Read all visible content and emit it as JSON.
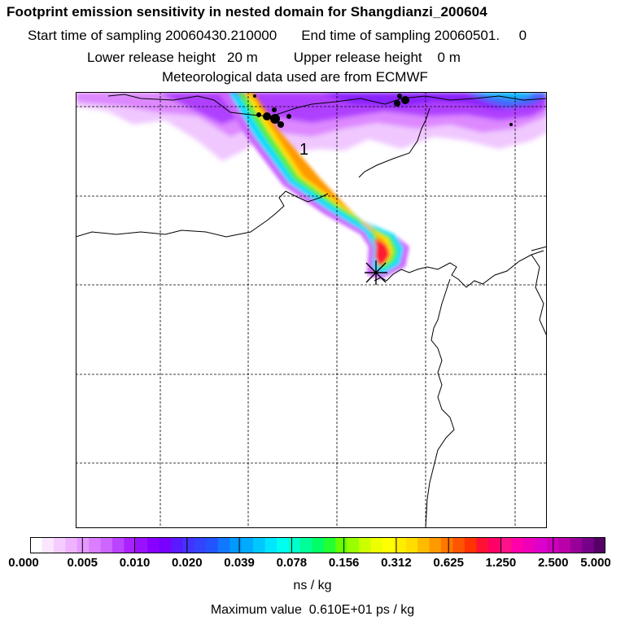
{
  "header": {
    "title": "Footprint emission sensitivity in nested domain for Shangdianzi_200604",
    "start_label": "Start time of sampling 20060430.210000",
    "end_label": "End time of sampling 20060501.     0",
    "lower_height": "Lower release height   20 m",
    "upper_height": "Upper release height    0 m",
    "met_data": "Meteorological data used are from ECMWF"
  },
  "map": {
    "plume_label": "1",
    "receptor_marker": "receptor-star"
  },
  "colorbar": {
    "ticks": [
      "0.000",
      "0.005",
      "0.010",
      "0.020",
      "0.039",
      "0.078",
      "0.156",
      "0.312",
      "0.625",
      "1.250",
      "2.500",
      "5.000"
    ],
    "colors": [
      "#ffffff",
      "#fbe6ff",
      "#f5ccff",
      "#eeb2ff",
      "#e599ff",
      "#d97fff",
      "#cc66ff",
      "#bb44ff",
      "#aa22ff",
      "#9911ff",
      "#8800ff",
      "#7700ff",
      "#5a1aff",
      "#4433ff",
      "#3344ff",
      "#2255ff",
      "#1177ff",
      "#0099ff",
      "#00aaff",
      "#00c8ff",
      "#00e6ff",
      "#00ffee",
      "#00ffcc",
      "#00ff99",
      "#00ff66",
      "#22ff33",
      "#66ff00",
      "#99ff00",
      "#ccff00",
      "#eeff00",
      "#ffff00",
      "#ffee00",
      "#ffdd00",
      "#ffbb00",
      "#ff9900",
      "#ff7700",
      "#ff5500",
      "#ff3300",
      "#ff1133",
      "#ff0066",
      "#ff1188",
      "#ff00aa",
      "#ee00bb",
      "#dd00cc",
      "#cc00bb",
      "#bb00aa",
      "#990099",
      "#770088",
      "#550066"
    ],
    "unit": "ns / kg",
    "max_value": "Maximum value  0.610E+01 ps / kg"
  }
}
